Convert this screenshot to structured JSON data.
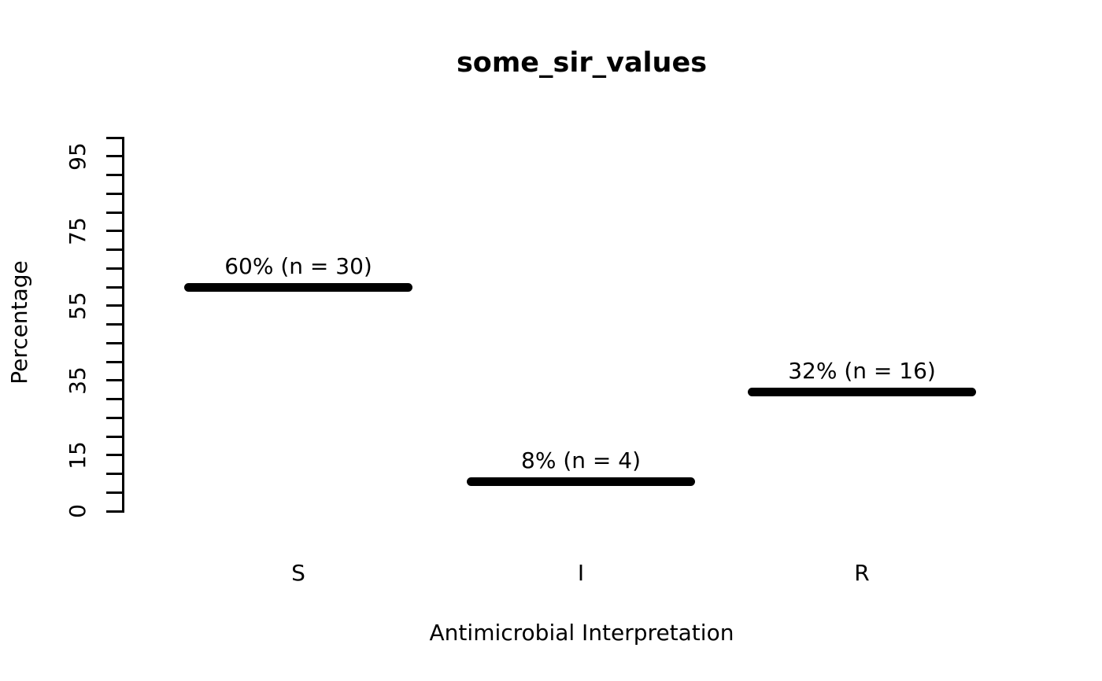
{
  "chart_data": {
    "type": "bar",
    "title": "some_sir_values",
    "xlabel": "Antimicrobial Interpretation",
    "ylabel": "Percentage",
    "categories": [
      "S",
      "I",
      "R"
    ],
    "values": [
      60,
      8,
      32
    ],
    "counts": [
      30,
      4,
      16
    ],
    "bar_labels": [
      "60% (n = 30)",
      "8% (n = 4)",
      "32% (n = 16)"
    ],
    "ylim": [
      0,
      100
    ],
    "ytick_step": 5,
    "ytick_labeled": [
      0,
      15,
      35,
      55,
      75,
      95
    ],
    "grid": false,
    "legend": null,
    "bar_color": "#000000",
    "text_color": "#000000",
    "background": "#ffffff"
  }
}
